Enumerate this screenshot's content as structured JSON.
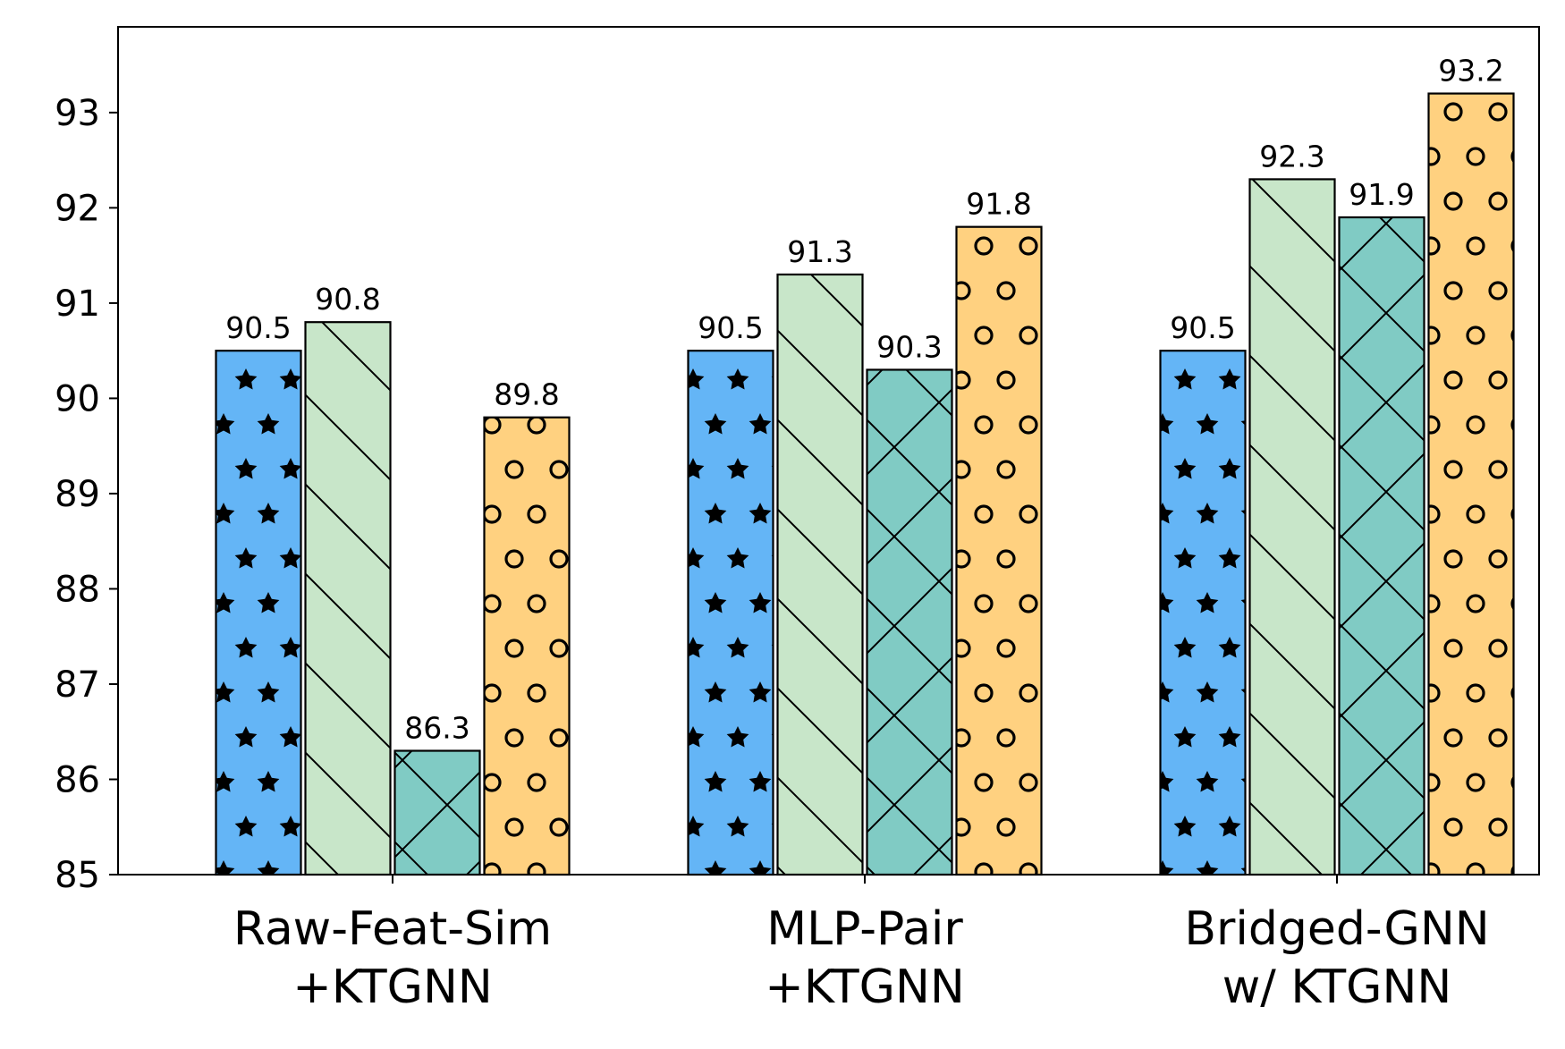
{
  "chart_data": {
    "type": "bar",
    "title": "",
    "xlabel": "",
    "ylabel": "",
    "ylim": [
      85,
      93.9
    ],
    "yticks": [
      85,
      86,
      87,
      88,
      89,
      90,
      91,
      92,
      93
    ],
    "categories": [
      [
        "Raw-Feat-Sim",
        "+KTGNN"
      ],
      [
        "MLP-Pair",
        "+KTGNN"
      ],
      [
        "Bridged-GNN",
        "w/ KTGNN"
      ]
    ],
    "series": [
      {
        "name": "series-1",
        "color": "#64b5f6",
        "hatch": "stars",
        "values": [
          90.5,
          90.5,
          90.5
        ]
      },
      {
        "name": "series-2",
        "color": "#c8e6c9",
        "hatch": "diagonal",
        "values": [
          90.8,
          91.3,
          92.3
        ]
      },
      {
        "name": "series-3",
        "color": "#80cbc4",
        "hatch": "cross",
        "values": [
          86.3,
          90.3,
          91.9
        ]
      },
      {
        "name": "series-4",
        "color": "#ffd180",
        "hatch": "circles",
        "values": [
          89.8,
          91.8,
          93.2
        ]
      }
    ],
    "grid": false,
    "legend": "none"
  }
}
